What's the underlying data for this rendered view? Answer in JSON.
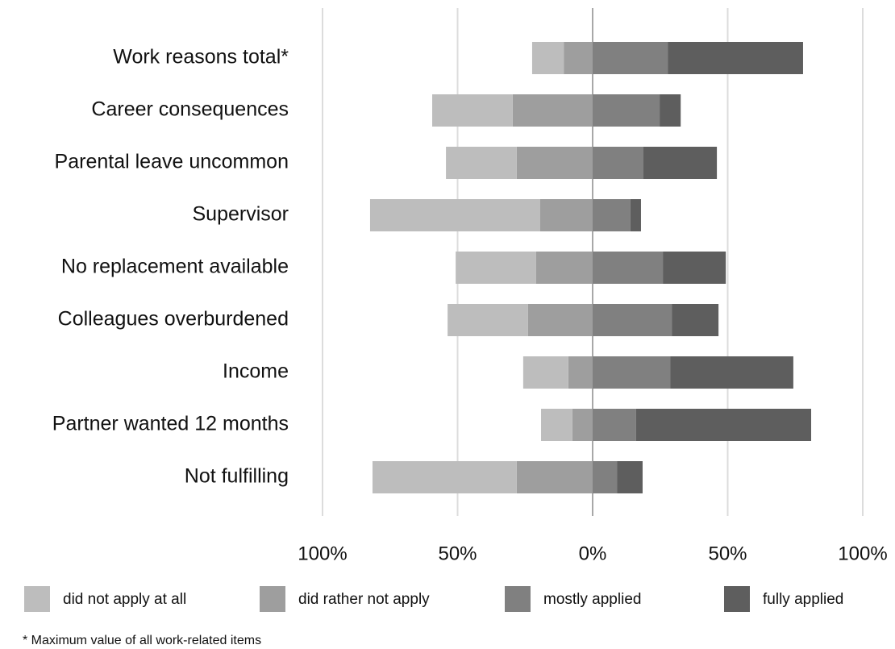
{
  "chart_data": {
    "type": "diverging-bar",
    "categories": [
      "Work reasons total*",
      "Career consequences",
      "Parental leave uncommon",
      "Supervisor",
      "No replacement available",
      "Colleagues overburdened",
      "Income",
      "Partner wanted 12 months",
      "Not fulfilling"
    ],
    "series": [
      {
        "name": "did not apply at all",
        "color": "#bdbdbd",
        "values": [
          -11.7,
          -29.8,
          -26.2,
          -63,
          -29.8,
          -29.8,
          -16.7,
          -11.6,
          -53.4
        ]
      },
      {
        "name": "did rather not apply",
        "color": "#9e9e9e",
        "values": [
          -10.7,
          -29.6,
          -28.1,
          -19.4,
          -20.9,
          -23.9,
          -9,
          -7.5,
          -28.1
        ]
      },
      {
        "name": "mostly applied",
        "color": "#808080",
        "values": [
          27.8,
          24.8,
          18.8,
          14,
          26,
          29.3,
          28.7,
          16.1,
          9
        ]
      },
      {
        "name": "fully applied",
        "color": "#5e5e5e",
        "values": [
          50.1,
          7.8,
          27.2,
          3.9,
          23.3,
          17.3,
          45.6,
          64.8,
          9.5
        ]
      }
    ],
    "xlim": [
      -100,
      100
    ],
    "xticks": [
      {
        "value": -100,
        "label": "100%"
      },
      {
        "value": -50,
        "label": "50%"
      },
      {
        "value": 0,
        "label": "0%"
      },
      {
        "value": 50,
        "label": "50%"
      },
      {
        "value": 100,
        "label": "100%"
      }
    ],
    "grid": true,
    "footnote": "* Maximum value of all work-related items"
  }
}
